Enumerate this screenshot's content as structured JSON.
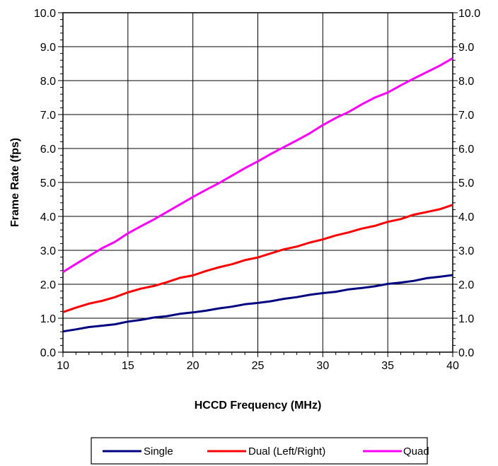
{
  "chart_data": {
    "type": "line",
    "title": "",
    "xlabel": "HCCD Frequency (MHz)",
    "ylabel": "Frame Rate (fps)",
    "xlim": [
      10,
      40
    ],
    "ylim": [
      0,
      10
    ],
    "x_ticks": [
      10,
      15,
      20,
      25,
      30,
      35,
      40
    ],
    "y_ticks": [
      "0.0",
      "1.0",
      "2.0",
      "3.0",
      "4.0",
      "5.0",
      "6.0",
      "7.0",
      "8.0",
      "9.0",
      "10.0"
    ],
    "grid": true,
    "secondary_y_axis": true,
    "legend_position": "bottom",
    "x": [
      10,
      11,
      12,
      13,
      14,
      15,
      16,
      17,
      18,
      19,
      20,
      21,
      22,
      23,
      24,
      25,
      26,
      27,
      28,
      29,
      30,
      31,
      32,
      33,
      34,
      35,
      36,
      37,
      38,
      39,
      40
    ],
    "series": [
      {
        "name": "Single",
        "color": "#000080",
        "values": [
          0.61,
          0.67,
          0.74,
          0.78,
          0.82,
          0.9,
          0.95,
          1.02,
          1.06,
          1.13,
          1.17,
          1.22,
          1.29,
          1.34,
          1.41,
          1.45,
          1.5,
          1.57,
          1.62,
          1.69,
          1.74,
          1.78,
          1.85,
          1.89,
          1.94,
          2.01,
          2.05,
          2.1,
          2.18,
          2.22,
          2.27
        ]
      },
      {
        "name": "Dual (Left/Right)",
        "color": "#ff0000",
        "values": [
          1.18,
          1.31,
          1.43,
          1.51,
          1.62,
          1.76,
          1.87,
          1.95,
          2.06,
          2.19,
          2.26,
          2.39,
          2.5,
          2.59,
          2.71,
          2.79,
          2.91,
          3.03,
          3.11,
          3.23,
          3.32,
          3.44,
          3.53,
          3.64,
          3.72,
          3.84,
          3.92,
          4.05,
          4.13,
          4.21,
          4.34
        ]
      },
      {
        "name": "Quad",
        "color": "#ff00ff",
        "values": [
          2.36,
          2.6,
          2.83,
          3.06,
          3.25,
          3.5,
          3.71,
          3.91,
          4.13,
          4.35,
          4.57,
          4.78,
          4.98,
          5.2,
          5.42,
          5.62,
          5.84,
          6.04,
          6.24,
          6.45,
          6.69,
          6.9,
          7.08,
          7.3,
          7.5,
          7.65,
          7.86,
          8.06,
          8.25,
          8.44,
          8.66
        ]
      }
    ]
  }
}
